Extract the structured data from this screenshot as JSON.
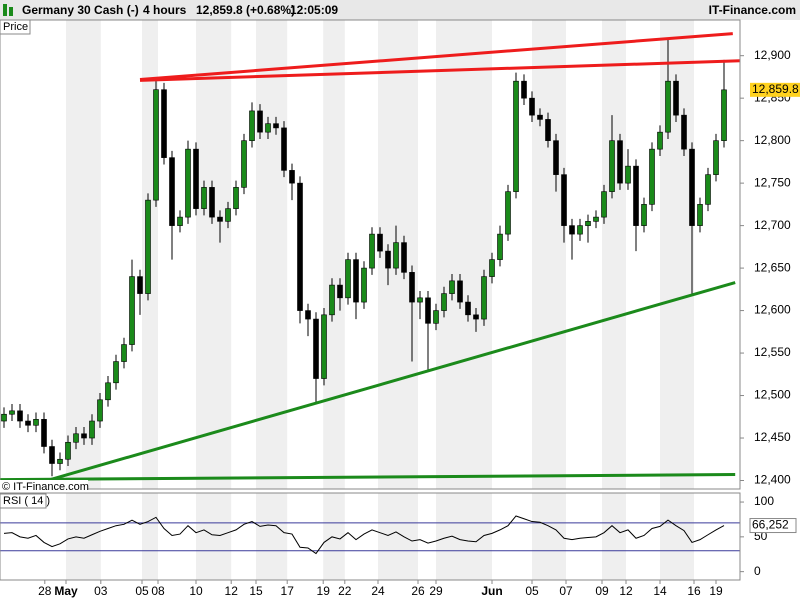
{
  "header": {
    "instrument": "Germany 30 Cash (-)",
    "timeframe": "4 hours",
    "quote": "12,859.8 (+0.68%)",
    "time": "12:05:09",
    "brand": "IT-Finance.com",
    "price_tab": "Price",
    "copyright": "© IT-Finance.com"
  },
  "chart_data": [
    {
      "type": "candlestick",
      "x": [
        0,
        1,
        2,
        3,
        4,
        5,
        6,
        7,
        8,
        9,
        10,
        11,
        12,
        13,
        14,
        15,
        16,
        17,
        18,
        19,
        20,
        21,
        22,
        23,
        24,
        25,
        26,
        27,
        28,
        29,
        30,
        31,
        32,
        33,
        34,
        35,
        36,
        37,
        38,
        39,
        40,
        41,
        42,
        43,
        44,
        45,
        46,
        47,
        48,
        49,
        50,
        51,
        52,
        53,
        54,
        55,
        56,
        57,
        58,
        59,
        60,
        61,
        62,
        63,
        64,
        65,
        66,
        67,
        68,
        69,
        70,
        71,
        72,
        73,
        74,
        75,
        76,
        77,
        78,
        79,
        80,
        81,
        82,
        83,
        84,
        85,
        86,
        87,
        88,
        89,
        90
      ],
      "open": [
        12470,
        12478,
        12482,
        12470,
        12465,
        12472,
        12440,
        12420,
        12425,
        12445,
        12455,
        12450,
        12470,
        12495,
        12515,
        12540,
        12560,
        12640,
        12620,
        12730,
        12860,
        12780,
        12700,
        12710,
        12790,
        12720,
        12745,
        12710,
        12705,
        12720,
        12745,
        12800,
        12835,
        12810,
        12820,
        12815,
        12765,
        12750,
        12600,
        12590,
        12520,
        12595,
        12630,
        12615,
        12660,
        12610,
        12650,
        12690,
        12670,
        12650,
        12680,
        12645,
        12610,
        12615,
        12585,
        12600,
        12620,
        12635,
        12610,
        12595,
        12590,
        12640,
        12660,
        12690,
        12740,
        12870,
        12850,
        12830,
        12825,
        12800,
        12760,
        12700,
        12690,
        12700,
        12705,
        12710,
        12740,
        12800,
        12750,
        12770,
        12700,
        12725,
        12790,
        12810,
        12870,
        12830,
        12790,
        12700,
        12725,
        12760,
        12800
      ],
      "high": [
        12486,
        12490,
        12490,
        12478,
        12480,
        12480,
        12448,
        12433,
        12453,
        12463,
        12463,
        12478,
        12503,
        12523,
        12548,
        12568,
        12660,
        12648,
        12738,
        12870,
        12868,
        12788,
        12718,
        12800,
        12798,
        12753,
        12753,
        12718,
        12728,
        12753,
        12808,
        12845,
        12843,
        12828,
        12828,
        12823,
        12773,
        12758,
        12608,
        12598,
        12603,
        12638,
        12638,
        12668,
        12668,
        12658,
        12698,
        12698,
        12678,
        12700,
        12688,
        12653,
        12623,
        12623,
        12608,
        12628,
        12643,
        12643,
        12618,
        12603,
        12648,
        12668,
        12700,
        12748,
        12880,
        12878,
        12858,
        12838,
        12833,
        12808,
        12768,
        12708,
        12708,
        12713,
        12718,
        12748,
        12830,
        12808,
        12790,
        12778,
        12733,
        12798,
        12818,
        12920,
        12878,
        12838,
        12798,
        12733,
        12768,
        12808,
        12895
      ],
      "low": [
        12462,
        12470,
        12462,
        12457,
        12457,
        12432,
        12405,
        12412,
        12417,
        12437,
        12442,
        12442,
        12462,
        12487,
        12507,
        12532,
        12552,
        12595,
        12612,
        12722,
        12772,
        12660,
        12692,
        12702,
        12712,
        12712,
        12702,
        12680,
        12697,
        12712,
        12737,
        12792,
        12802,
        12802,
        12807,
        12757,
        12730,
        12585,
        12570,
        12490,
        12512,
        12587,
        12600,
        12607,
        12590,
        12602,
        12642,
        12662,
        12630,
        12642,
        12637,
        12540,
        12590,
        12530,
        12577,
        12592,
        12612,
        12602,
        12587,
        12575,
        12582,
        12632,
        12652,
        12682,
        12732,
        12842,
        12822,
        12817,
        12792,
        12740,
        12680,
        12660,
        12682,
        12680,
        12697,
        12702,
        12732,
        12742,
        12742,
        12670,
        12692,
        12717,
        12782,
        12802,
        12822,
        12782,
        12620,
        12692,
        12717,
        12752,
        12792
      ],
      "close": [
        12478,
        12482,
        12470,
        12465,
        12472,
        12440,
        12420,
        12425,
        12445,
        12455,
        12450,
        12470,
        12495,
        12515,
        12540,
        12560,
        12640,
        12620,
        12730,
        12860,
        12780,
        12700,
        12710,
        12790,
        12720,
        12745,
        12710,
        12705,
        12720,
        12745,
        12800,
        12835,
        12810,
        12820,
        12815,
        12765,
        12750,
        12600,
        12590,
        12520,
        12595,
        12630,
        12615,
        12660,
        12610,
        12650,
        12690,
        12670,
        12650,
        12680,
        12645,
        12610,
        12615,
        12585,
        12600,
        12620,
        12635,
        12610,
        12595,
        12590,
        12640,
        12660,
        12690,
        12740,
        12870,
        12850,
        12830,
        12825,
        12800,
        12760,
        12700,
        12690,
        12700,
        12705,
        12710,
        12740,
        12800,
        12750,
        12770,
        12700,
        12725,
        12790,
        12810,
        12870,
        12830,
        12790,
        12700,
        12725,
        12760,
        12800,
        12859.8
      ],
      "up_color": "#1a8a1a",
      "down_color": "#000000",
      "last_label": "12,859.8",
      "xlim": [
        -0.5,
        92
      ],
      "ylim": [
        12390,
        12942
      ],
      "yticks": [
        {
          "value": 12400,
          "label": "12,400"
        },
        {
          "value": 12450,
          "label": "12,450"
        },
        {
          "value": 12500,
          "label": "12,500"
        },
        {
          "value": 12550,
          "label": "12,550"
        },
        {
          "value": 12600,
          "label": "12,600"
        },
        {
          "value": 12650,
          "label": "12,650"
        },
        {
          "value": 12700,
          "label": "12,700"
        },
        {
          "value": 12750,
          "label": "12,750"
        },
        {
          "value": 12800,
          "label": "12,800"
        },
        {
          "value": 12850,
          "label": "12,850"
        },
        {
          "value": 12900,
          "label": "12,900"
        }
      ],
      "xticks": [
        {
          "value": 5.1,
          "label": "28"
        },
        {
          "value": 7.75,
          "label": "May",
          "bold": true
        },
        {
          "value": 12.1,
          "label": "03"
        },
        {
          "value": 17.25,
          "label": "05"
        },
        {
          "value": 19.25,
          "label": "08"
        },
        {
          "value": 24,
          "label": "10"
        },
        {
          "value": 28.4,
          "label": "12"
        },
        {
          "value": 31.5,
          "label": "15"
        },
        {
          "value": 35.4,
          "label": "17"
        },
        {
          "value": 39.9,
          "label": "19"
        },
        {
          "value": 42.6,
          "label": "22"
        },
        {
          "value": 46.75,
          "label": "24"
        },
        {
          "value": 51.75,
          "label": "26"
        },
        {
          "value": 54,
          "label": "29"
        },
        {
          "value": 61,
          "label": "Jun",
          "bold": true
        },
        {
          "value": 66,
          "label": "05"
        },
        {
          "value": 70.25,
          "label": "07"
        },
        {
          "value": 74.75,
          "label": "09"
        },
        {
          "value": 77.75,
          "label": "12"
        },
        {
          "value": 82,
          "label": "14"
        },
        {
          "value": 86.25,
          "label": "16"
        },
        {
          "value": 89,
          "label": "19"
        }
      ],
      "trendlines": [
        {
          "from": [
            17,
            12871
          ],
          "to": [
            92,
            12894
          ],
          "color": "#ee1c1c"
        },
        {
          "from": [
            17,
            12872
          ],
          "to": [
            91.1,
            12926
          ],
          "color": "#ee1c1c"
        },
        {
          "from": [
            5.75,
            12401
          ],
          "to": [
            91.4,
            12633
          ],
          "color": "#1b8a1b"
        },
        {
          "from": [
            -0.5,
            12401
          ],
          "to": [
            91.4,
            12407
          ],
          "color": "#1b8a1b"
        }
      ]
    },
    {
      "type": "line",
      "title": "RSI ( 14 )",
      "color": "#000000",
      "values": [
        55,
        56,
        50,
        48,
        52,
        42,
        36,
        40,
        47,
        50,
        48,
        53,
        58,
        62,
        66,
        68,
        74,
        68,
        72,
        78,
        62,
        52,
        54,
        66,
        56,
        60,
        53,
        52,
        56,
        60,
        68,
        72,
        65,
        67,
        66,
        56,
        54,
        35,
        34,
        26,
        42,
        50,
        47,
        56,
        46,
        54,
        60,
        56,
        52,
        57,
        50,
        44,
        46,
        41,
        44,
        48,
        51,
        46,
        44,
        43,
        52,
        55,
        60,
        66,
        80,
        76,
        72,
        71,
        66,
        60,
        48,
        46,
        48,
        49,
        50,
        56,
        66,
        56,
        60,
        48,
        52,
        62,
        65,
        74,
        66,
        59,
        42,
        46,
        53,
        60,
        66.252
      ],
      "last_label": "66,252",
      "ylim": [
        -12,
        113
      ],
      "yticks": [
        100,
        50,
        0
      ],
      "ref_lines": [
        70,
        30
      ],
      "ref_color": "#3a3a9a"
    }
  ]
}
